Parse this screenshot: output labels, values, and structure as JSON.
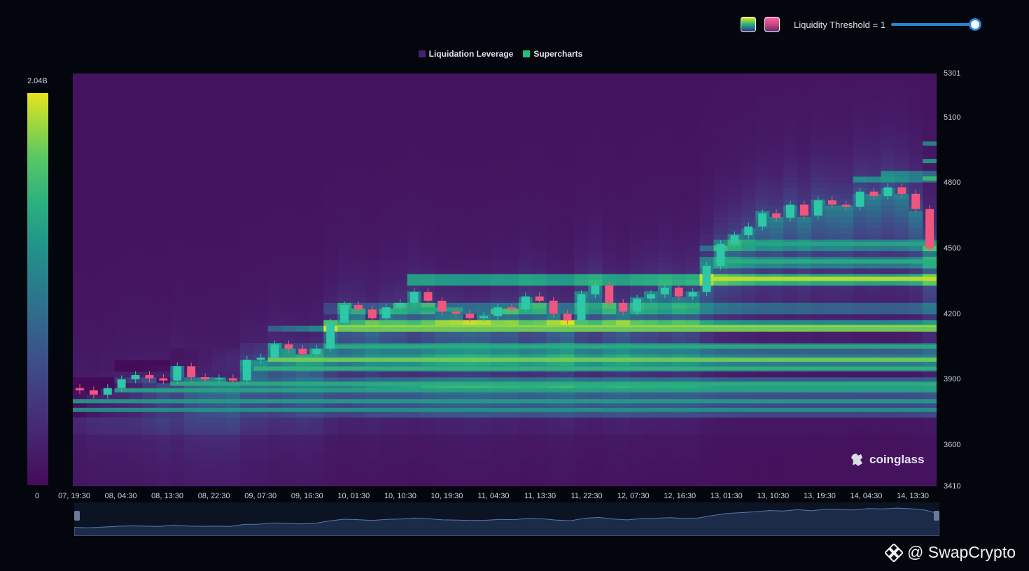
{
  "controls": {
    "threshold_label": "Liquidity Threshold = 1",
    "threshold_value": 1,
    "threshold_fraction": 1.0
  },
  "legend": [
    {
      "label": "Liquidation Leverage",
      "color": "#4b1e6e"
    },
    {
      "label": "Supercharts",
      "color": "#19c37d"
    }
  ],
  "colorbar": {
    "max_label": "2.04B",
    "min_label": "0"
  },
  "logo": {
    "text": "coinglass"
  },
  "watermark": {
    "text": "@ SwapCrypto"
  },
  "colors": {
    "up": "#2ec7a7",
    "down": "#f0567d",
    "nav_line": "#5677b0"
  },
  "chart_data": {
    "type": "heatmap",
    "title": "",
    "xlabel": "",
    "ylabel": "",
    "ylim": [
      3410,
      5301
    ],
    "y_ticks": [
      5301,
      5100,
      4800,
      4500,
      4200,
      3900,
      3600,
      3410
    ],
    "x_ticks": [
      "07, 19:30",
      "08, 04:30",
      "08, 13:30",
      "08, 22:30",
      "09, 07:30",
      "09, 16:30",
      "10, 01:30",
      "10, 10:30",
      "10, 19:30",
      "11, 04:30",
      "11, 13:30",
      "11, 22:30",
      "12, 07:30",
      "12, 16:30",
      "13, 01:30",
      "13, 10:30",
      "13, 19:30",
      "14, 04:30",
      "14, 13:30"
    ],
    "value_range": [
      0,
      2040000000
    ],
    "price_series": {
      "name": "Supercharts",
      "close": [
        3850,
        3830,
        3860,
        3900,
        3920,
        3905,
        3895,
        3960,
        3910,
        3900,
        3905,
        3895,
        3990,
        4000,
        4060,
        4040,
        4015,
        4040,
        4160,
        4240,
        4220,
        4180,
        4230,
        4250,
        4300,
        4260,
        4210,
        4200,
        4180,
        4190,
        4230,
        4220,
        4280,
        4260,
        4200,
        4170,
        4290,
        4330,
        4250,
        4210,
        4270,
        4290,
        4320,
        4280,
        4300,
        4420,
        4520,
        4560,
        4600,
        4660,
        4640,
        4700,
        4650,
        4720,
        4700,
        4690,
        4760,
        4740,
        4780,
        4750,
        4680,
        4500
      ]
    },
    "bands": [
      {
        "price": 4140,
        "intensity": 0.85
      },
      {
        "price": 4130,
        "intensity": 0.75
      },
      {
        "price": 3990,
        "intensity": 0.8
      },
      {
        "price": 4050,
        "intensity": 0.55
      },
      {
        "price": 3950,
        "intensity": 0.6
      },
      {
        "price": 3880,
        "intensity": 0.55
      },
      {
        "price": 3850,
        "intensity": 0.5
      },
      {
        "price": 3800,
        "intensity": 0.45
      },
      {
        "price": 3760,
        "intensity": 0.4
      },
      {
        "price": 4220,
        "intensity": 0.5
      },
      {
        "price": 4440,
        "intensity": 0.55
      },
      {
        "price": 4520,
        "intensity": 0.5
      },
      {
        "price": 4360,
        "intensity": 0.95
      },
      {
        "price": 4820,
        "intensity": 0.65
      },
      {
        "price": 4900,
        "intensity": 0.45
      },
      {
        "price": 4980,
        "intensity": 0.35
      }
    ]
  }
}
